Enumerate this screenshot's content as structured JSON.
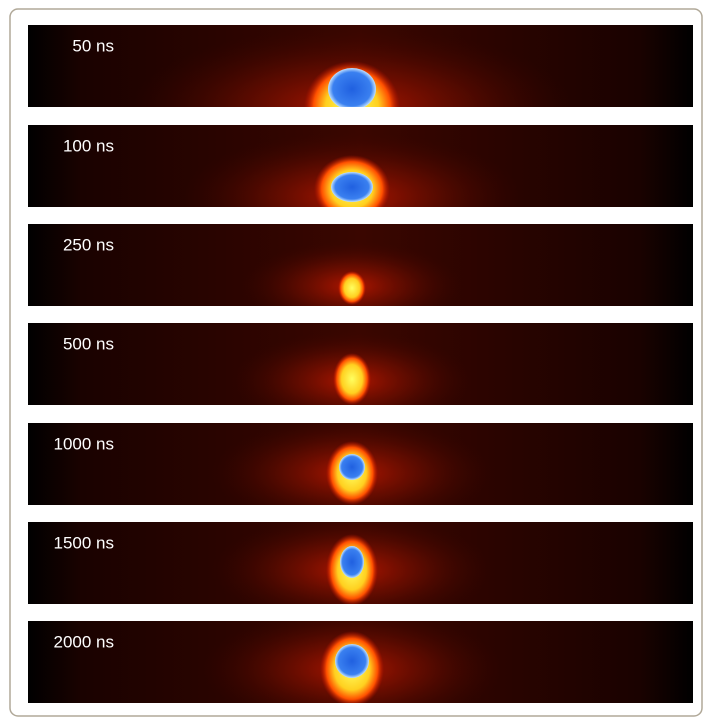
{
  "frames": [
    {
      "label": "50 ns"
    },
    {
      "label": "100 ns"
    },
    {
      "label": "250 ns"
    },
    {
      "label": "500 ns"
    },
    {
      "label": "1000 ns"
    },
    {
      "label": "1500 ns"
    },
    {
      "label": "2000 ns"
    }
  ]
}
